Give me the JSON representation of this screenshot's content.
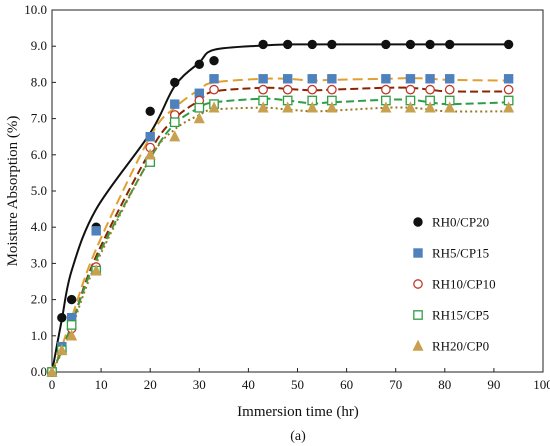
{
  "chart_data": {
    "type": "scatter",
    "xlabel": "Immersion time (hr)",
    "ylabel": "Moisture Absorption (%)",
    "xlim": [
      0,
      100
    ],
    "ylim": [
      0.0,
      10.0
    ],
    "xticks": [
      "0",
      "10",
      "20",
      "30",
      "40",
      "50",
      "60",
      "70",
      "80",
      "90",
      "100"
    ],
    "yticks": [
      "0.0",
      "1.0",
      "2.0",
      "3.0",
      "4.0",
      "5.0",
      "6.0",
      "7.0",
      "8.0",
      "9.0",
      "10.0"
    ],
    "legend_position": "right",
    "grid": false,
    "caption": "(a)",
    "series": [
      {
        "name": "RH0/CP20",
        "marker": "filled-circle",
        "color": "#111111",
        "line_style": "solid",
        "x": [
          0,
          2,
          4,
          9,
          20,
          25,
          30,
          33,
          43,
          48,
          53,
          57,
          68,
          73,
          77,
          81,
          93
        ],
        "y": [
          0.0,
          1.5,
          2.0,
          4.0,
          7.2,
          8.0,
          8.5,
          8.6,
          9.05,
          9.05,
          9.05,
          9.05,
          9.05,
          9.05,
          9.05,
          9.05,
          9.05
        ],
        "fit_y": [
          0.0,
          1.45,
          2.8,
          4.5,
          6.6,
          7.9,
          8.55,
          8.9,
          9.02,
          9.05,
          9.05,
          9.05,
          9.05,
          9.05,
          9.05,
          9.05,
          9.05
        ]
      },
      {
        "name": "RH5/CP15",
        "marker": "filled-square",
        "color": "#4f81bd",
        "line_style": "long-dash",
        "line_color": "#e0a030",
        "x": [
          0,
          2,
          4,
          9,
          20,
          25,
          30,
          33,
          43,
          48,
          53,
          57,
          68,
          73,
          77,
          81,
          93
        ],
        "y": [
          0.0,
          0.7,
          1.5,
          3.9,
          6.5,
          7.4,
          7.7,
          8.1,
          8.1,
          8.1,
          8.1,
          8.1,
          8.1,
          8.1,
          8.1,
          8.1,
          8.1
        ],
        "fit_y": [
          0.0,
          0.7,
          1.5,
          3.4,
          6.5,
          7.3,
          7.8,
          8.0,
          8.1,
          8.1,
          8.05,
          8.07,
          8.1,
          8.12,
          8.1,
          8.07,
          8.05
        ]
      },
      {
        "name": "RH10/CP10",
        "marker": "open-circle",
        "color": "#c0392b",
        "line_style": "dash",
        "line_color": "#8b2500",
        "x": [
          0,
          2,
          4,
          9,
          20,
          25,
          30,
          33,
          43,
          48,
          53,
          57,
          68,
          73,
          77,
          81,
          93
        ],
        "y": [
          0.0,
          0.6,
          1.2,
          2.9,
          6.2,
          7.1,
          7.5,
          7.8,
          7.8,
          7.8,
          7.8,
          7.8,
          7.8,
          7.8,
          7.8,
          7.8,
          7.8
        ],
        "fit_y": [
          0.0,
          0.6,
          1.3,
          3.2,
          6.1,
          7.0,
          7.5,
          7.75,
          7.85,
          7.82,
          7.78,
          7.8,
          7.85,
          7.85,
          7.8,
          7.75,
          7.75
        ]
      },
      {
        "name": "RH15/CP5",
        "marker": "open-square",
        "color": "#2e9e44",
        "line_style": "dash",
        "line_color": "#2e9e44",
        "x": [
          0,
          2,
          4,
          9,
          20,
          25,
          30,
          33,
          43,
          48,
          53,
          57,
          68,
          73,
          77,
          81,
          93
        ],
        "y": [
          0.0,
          0.6,
          1.3,
          2.8,
          5.8,
          6.9,
          7.3,
          7.4,
          7.5,
          7.5,
          7.5,
          7.5,
          7.5,
          7.5,
          7.5,
          7.5,
          7.5
        ],
        "fit_y": [
          0.0,
          0.6,
          1.3,
          3.1,
          5.9,
          6.85,
          7.3,
          7.45,
          7.55,
          7.5,
          7.42,
          7.45,
          7.52,
          7.52,
          7.45,
          7.4,
          7.45
        ]
      },
      {
        "name": "RH20/CP0",
        "marker": "filled-triangle",
        "color": "#c8a050",
        "line_style": "dot",
        "line_color": "#9a7a20",
        "x": [
          0,
          2,
          4,
          9,
          20,
          25,
          30,
          33,
          43,
          48,
          53,
          57,
          68,
          73,
          77,
          81,
          93
        ],
        "y": [
          0.0,
          0.6,
          1.0,
          2.8,
          6.0,
          6.5,
          7.0,
          7.3,
          7.3,
          7.3,
          7.3,
          7.3,
          7.3,
          7.3,
          7.3,
          7.3,
          7.3
        ],
        "fit_y": [
          0.0,
          0.55,
          1.2,
          3.0,
          5.9,
          6.7,
          7.1,
          7.25,
          7.3,
          7.25,
          7.2,
          7.22,
          7.3,
          7.3,
          7.25,
          7.2,
          7.2
        ]
      }
    ]
  }
}
